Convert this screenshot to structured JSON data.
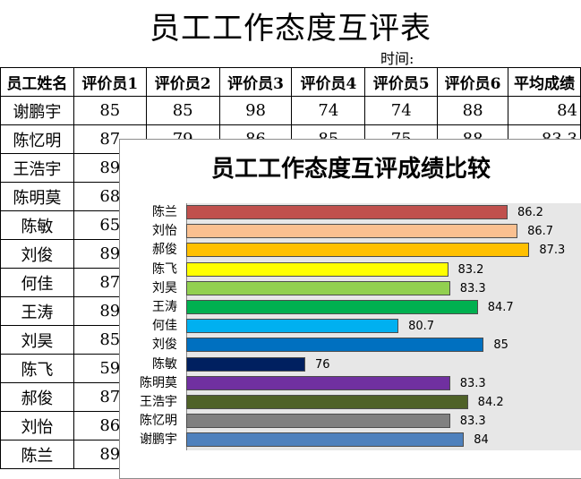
{
  "sheet": {
    "title": "员工工作态度互评表",
    "time_label": "时间:",
    "headers": [
      "员工姓名",
      "评价员1",
      "评价员2",
      "评价员3",
      "评价员4",
      "评价员5",
      "评价员6",
      "平均成绩"
    ],
    "rows": [
      {
        "name": "谢鹏宇",
        "scores": [
          "85",
          "85",
          "98",
          "74",
          "74",
          "88"
        ],
        "avg": "84"
      },
      {
        "name": "陈忆明",
        "scores": [
          "87",
          "79",
          "86",
          "85",
          "75",
          "88"
        ],
        "avg": "83.3"
      },
      {
        "name": "王浩宇",
        "scores": [
          "89",
          "",
          "",
          "",
          "",
          "",
          ""
        ],
        "avg": ""
      },
      {
        "name": "陈明莫",
        "scores": [
          "68",
          "",
          "",
          "",
          "",
          "",
          ""
        ],
        "avg": ""
      },
      {
        "name": "陈敏",
        "scores": [
          "65",
          "",
          "",
          "",
          "",
          "",
          ""
        ],
        "avg": ""
      },
      {
        "name": "刘俊",
        "scores": [
          "89",
          "",
          "",
          "",
          "",
          "",
          ""
        ],
        "avg": ""
      },
      {
        "name": "何佳",
        "scores": [
          "87",
          "",
          "",
          "",
          "",
          "",
          ""
        ],
        "avg": ""
      },
      {
        "name": "王涛",
        "scores": [
          "89",
          "",
          "",
          "",
          "",
          "",
          ""
        ],
        "avg": ""
      },
      {
        "name": "刘昊",
        "scores": [
          "85",
          "",
          "",
          "",
          "",
          "",
          ""
        ],
        "avg": ""
      },
      {
        "name": "陈飞",
        "scores": [
          "59",
          "",
          "",
          "",
          "",
          "",
          ""
        ],
        "avg": ""
      },
      {
        "name": "郝俊",
        "scores": [
          "87",
          "",
          "",
          "",
          "",
          "",
          ""
        ],
        "avg": ""
      },
      {
        "name": "刘怡",
        "scores": [
          "86",
          "",
          "",
          "",
          "",
          "",
          ""
        ],
        "avg": ""
      },
      {
        "name": "陈兰",
        "scores": [
          "89",
          "",
          "",
          "",
          "",
          "",
          ""
        ],
        "avg": ""
      }
    ]
  },
  "chart_data": {
    "type": "bar",
    "orientation": "horizontal",
    "title": "员工工作态度互评成绩比较",
    "categories": [
      "陈兰",
      "刘怡",
      "郝俊",
      "陈飞",
      "刘昊",
      "王涛",
      "何佳",
      "刘俊",
      "陈敏",
      "陈明莫",
      "王浩宇",
      "陈忆明",
      "谢鹏宇"
    ],
    "values": [
      86.2,
      86.7,
      87.3,
      83.2,
      83.3,
      84.7,
      80.7,
      85,
      76,
      83.3,
      84.2,
      83.3,
      84
    ],
    "value_labels": [
      "86.2",
      "86.7",
      "87.3",
      "83.2",
      "83.3",
      "84.7",
      "80.7",
      "85",
      "76",
      "83.3",
      "84.2",
      "83.3",
      "84"
    ],
    "colors": [
      "#C0504D",
      "#FAC090",
      "#FFC000",
      "#FFFF00",
      "#92D050",
      "#00B050",
      "#00B0F0",
      "#0070C0",
      "#002060",
      "#7030A0",
      "#4F6228",
      "#808080",
      "#4F81BD"
    ],
    "xlim": [
      70,
      90
    ],
    "xlabel": "",
    "ylabel": "",
    "grid": false,
    "legend": false,
    "plot_background": "#E7E7E7"
  }
}
